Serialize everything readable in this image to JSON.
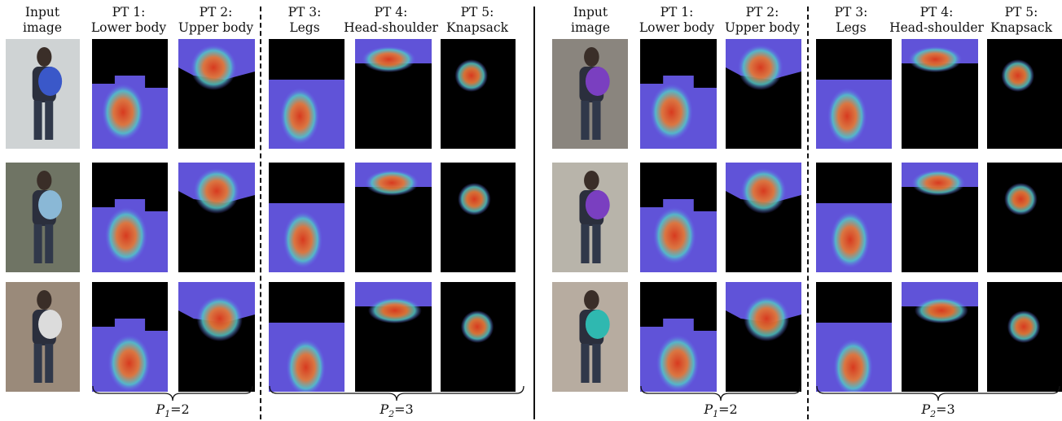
{
  "headers": {
    "input": [
      "Input",
      "image"
    ],
    "pt1": [
      "PT 1:",
      "Lower body"
    ],
    "pt2": [
      "PT 2:",
      "Upper body"
    ],
    "pt3": [
      "PT 3:",
      "Legs"
    ],
    "pt4": [
      "PT 4:",
      "Head-shoulder"
    ],
    "pt5": [
      "PT 5:",
      "Knapsack"
    ]
  },
  "groups": {
    "p1": {
      "symbol": "P",
      "sub": "1",
      "value": "=2"
    },
    "p2": {
      "symbol": "P",
      "sub": "2",
      "value": "=3"
    }
  },
  "colors": {
    "background_mask": "#000000",
    "heat_low": "#6a5cf0",
    "heat_mid": "#52c7c7",
    "heat_high": "#d83a1f"
  }
}
